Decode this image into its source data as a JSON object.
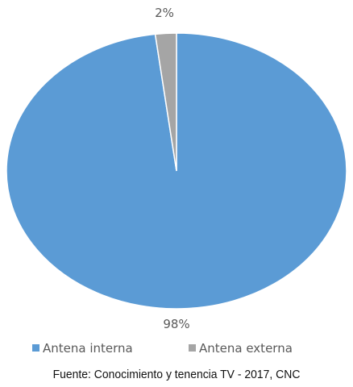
{
  "chart_data": {
    "type": "pie",
    "slices": [
      {
        "label": "Antena interna",
        "value": 98,
        "display": "98%",
        "color": "#5b9bd5"
      },
      {
        "label": "Antena externa",
        "value": 2,
        "display": "2%",
        "color": "#a5a5a5"
      }
    ],
    "start_angle": "top (12 o'clock), clockwise",
    "legend_position": "bottom",
    "data_labels": "outside"
  },
  "source": "Fuente: Conocimiento y tenencia TV - 2017, CNC"
}
